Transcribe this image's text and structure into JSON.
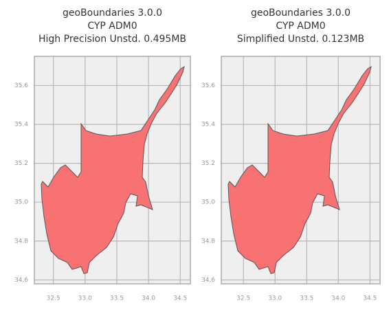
{
  "chart_data": [
    {
      "type": "map",
      "title": [
        "geoBoundaries 3.0.0",
        "CYP ADM0",
        "High Precision Unstd. 0.495MB"
      ],
      "color": "#f87274",
      "grid": true,
      "xlim": [
        32.2,
        34.66
      ],
      "ylim": [
        34.58,
        35.75
      ],
      "xticks": [
        32.5,
        {
          "value": 33.0,
          "label": "33.0"
        },
        33.5,
        {
          "value": 34.0,
          "label": "34.0"
        },
        34.5
      ],
      "yticks": [
        34.6,
        34.8,
        {
          "value": 35.0,
          "label": "35.0"
        },
        35.2,
        35.4,
        35.6
      ]
    },
    {
      "type": "map",
      "title": [
        "geoBoundaries 3.0.0",
        "CYP ADM0",
        "Simplified Unstd. 0.123MB"
      ],
      "color": "#f87274",
      "grid": true,
      "xlim": [
        32.15,
        34.66
      ],
      "ylim": [
        34.58,
        35.75
      ],
      "xticks": [
        32.5,
        {
          "value": 33.0,
          "label": "33.0"
        },
        33.5,
        {
          "value": 34.0,
          "label": "34.0"
        },
        34.5
      ],
      "yticks": [
        34.6,
        34.8,
        {
          "value": 35.0,
          "label": "35.0"
        },
        35.2,
        35.4,
        35.6
      ]
    }
  ]
}
